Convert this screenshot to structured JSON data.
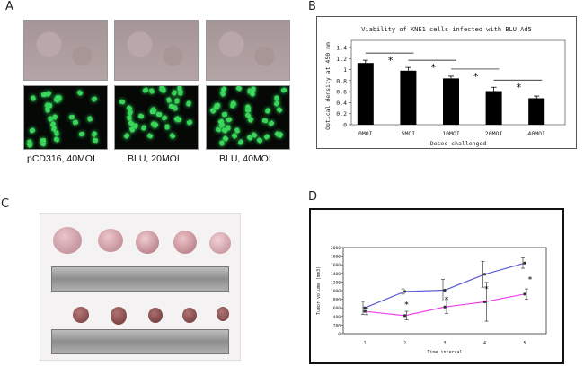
{
  "panels": {
    "a_label": "A",
    "b_label": "B",
    "c_label": "C",
    "d_label": "D"
  },
  "panel_a": {
    "captions": [
      "pCD316, 40MOI",
      "BLU,  20MOI",
      "BLU,  40MOI"
    ]
  },
  "chart_data": [
    {
      "type": "bar",
      "title": "Viability of KNE1 cells infected with BLU Ad5",
      "xlabel": "Doses challenged",
      "ylabel": "Optical density at 450 nm",
      "categories": [
        "0MOI",
        "5MOI",
        "10MOI",
        "20MOI",
        "40MOI"
      ],
      "values": [
        1.12,
        0.98,
        0.84,
        0.61,
        0.48
      ],
      "errors": [
        0.05,
        0.06,
        0.04,
        0.07,
        0.04
      ],
      "ylim": [
        0,
        1.4
      ],
      "yticks": [
        "0",
        "0.2",
        "0.4",
        "0.6",
        "0.8",
        "1",
        "1.2",
        "1.4"
      ],
      "significance_marker": "*",
      "bar_color": "#000000"
    },
    {
      "type": "line",
      "xlabel": "Time interval",
      "ylabel": "Tumor volume (mm3)",
      "x": [
        1,
        2,
        3,
        4,
        5
      ],
      "xticks": [
        "1",
        "2",
        "3",
        "4",
        "5"
      ],
      "yticks": [
        "0",
        "200",
        "400",
        "600",
        "800",
        "1000",
        "1200",
        "1400",
        "1600",
        "1800",
        "2000"
      ],
      "ylim": [
        0,
        2000
      ],
      "series": [
        {
          "values": [
            600,
            980,
            1010,
            1380,
            1640
          ],
          "errors": [
            150,
            60,
            250,
            300,
            120
          ],
          "color": "#5b5bd6"
        },
        {
          "values": [
            520,
            420,
            620,
            740,
            920
          ],
          "errors": [
            80,
            100,
            150,
            450,
            120
          ],
          "color": "#ee44ee"
        }
      ],
      "significance_marker": "*"
    }
  ]
}
